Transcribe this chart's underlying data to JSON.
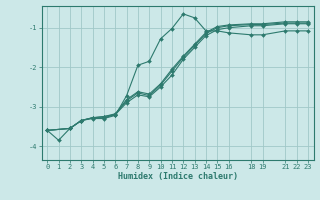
{
  "xlabel": "Humidex (Indice chaleur)",
  "ylabel": "",
  "background_color": "#cce8e8",
  "grid_color": "#a0c8c8",
  "line_color": "#2d7a6e",
  "xlim": [
    -0.5,
    23.5
  ],
  "ylim": [
    -4.35,
    -0.45
  ],
  "xticks": [
    0,
    1,
    2,
    3,
    4,
    5,
    6,
    7,
    8,
    9,
    10,
    11,
    12,
    13,
    14,
    15,
    16,
    18,
    19,
    21,
    22,
    23
  ],
  "yticks": [
    -4,
    -3,
    -2,
    -1
  ],
  "series": [
    {
      "x": [
        0,
        1,
        2,
        3,
        4,
        5,
        6,
        7,
        8,
        9,
        10,
        11,
        12,
        13,
        14,
        15,
        16,
        18,
        19,
        21,
        22,
        23
      ],
      "y": [
        -3.6,
        -3.85,
        -3.55,
        -3.35,
        -3.3,
        -3.3,
        -3.22,
        -2.72,
        -1.95,
        -1.85,
        -1.28,
        -1.02,
        -0.65,
        -0.75,
        -1.08,
        -1.08,
        -1.13,
        -1.18,
        -1.18,
        -1.08,
        -1.08,
        -1.08
      ]
    },
    {
      "x": [
        0,
        2,
        3,
        4,
        5,
        6,
        7,
        8,
        9,
        10,
        11,
        12,
        13,
        14,
        15,
        16,
        18,
        19,
        21,
        22,
        23
      ],
      "y": [
        -3.6,
        -3.55,
        -3.35,
        -3.28,
        -3.25,
        -3.18,
        -2.82,
        -2.62,
        -2.68,
        -2.42,
        -2.05,
        -1.72,
        -1.42,
        -1.12,
        -0.97,
        -0.93,
        -0.9,
        -0.9,
        -0.85,
        -0.85,
        -0.85
      ]
    },
    {
      "x": [
        0,
        2,
        3,
        4,
        5,
        6,
        7,
        8,
        9,
        10,
        11,
        12,
        13,
        14,
        15,
        16,
        18,
        19,
        21,
        22,
        23
      ],
      "y": [
        -3.6,
        -3.55,
        -3.35,
        -3.28,
        -3.25,
        -3.2,
        -2.85,
        -2.65,
        -2.72,
        -2.45,
        -2.1,
        -1.75,
        -1.45,
        -1.15,
        -1.0,
        -0.95,
        -0.92,
        -0.92,
        -0.88,
        -0.88,
        -0.88
      ]
    },
    {
      "x": [
        0,
        2,
        3,
        4,
        5,
        6,
        7,
        8,
        9,
        10,
        11,
        12,
        13,
        14,
        15,
        16,
        18,
        19,
        21,
        22,
        23
      ],
      "y": [
        -3.6,
        -3.55,
        -3.35,
        -3.28,
        -3.28,
        -3.2,
        -2.9,
        -2.7,
        -2.75,
        -2.5,
        -2.2,
        -1.8,
        -1.5,
        -1.2,
        -1.05,
        -1.0,
        -0.95,
        -0.95,
        -0.9,
        -0.9,
        -0.9
      ]
    }
  ]
}
